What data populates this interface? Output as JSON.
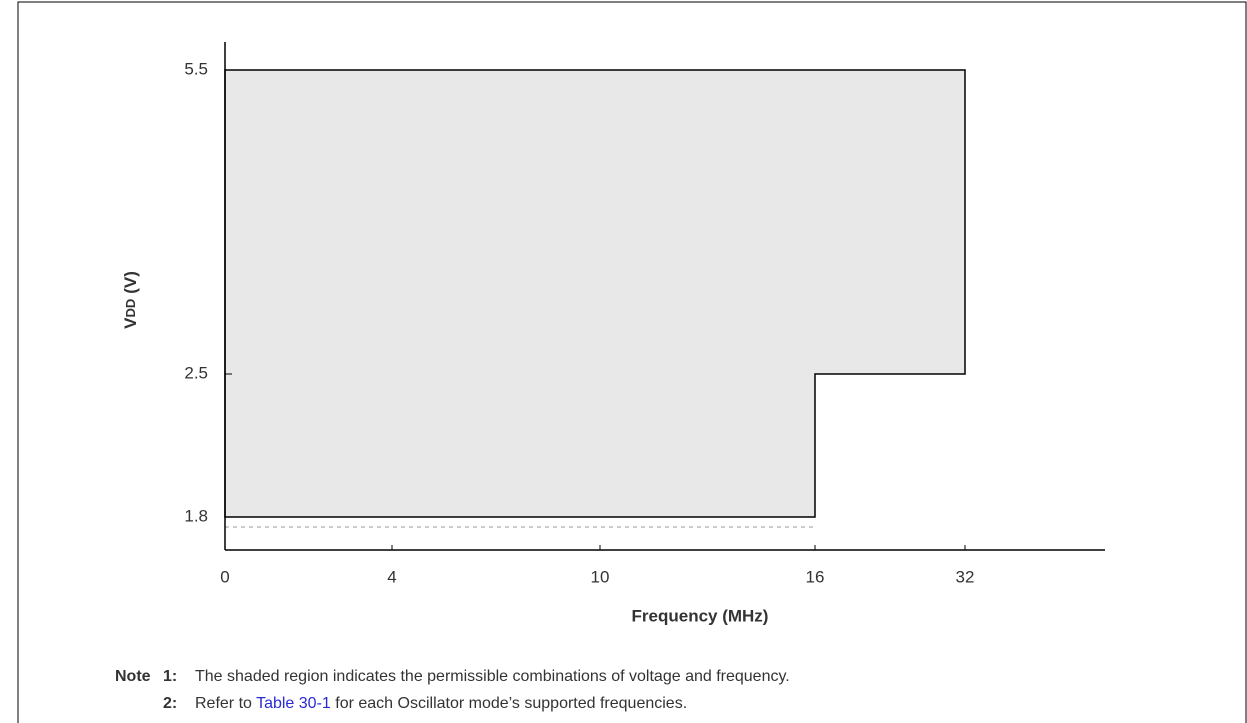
{
  "chart_data": {
    "type": "step-area",
    "y_label": {
      "main": "V",
      "sub": "DD",
      "unit": "(V)"
    },
    "x_label": "Frequency (MHz)",
    "xticks": [
      0,
      4,
      10,
      16,
      32
    ],
    "yticks": [
      1.8,
      2.5,
      5.5
    ],
    "region": {
      "x": [
        0,
        0,
        32,
        32,
        16,
        16
      ],
      "y": [
        1.8,
        5.5,
        5.5,
        2.5,
        2.5,
        1.8
      ],
      "color": "#e8e8e8"
    },
    "notes": {
      "heading": "Note",
      "items": [
        {
          "num": "1:",
          "text": "The shaded region indicates the permissible combinations of voltage and frequency."
        },
        {
          "num": "2:",
          "before": "Refer to",
          "link": "Table 30-1",
          "after": "for each Oscillator mode’s supported frequencies."
        }
      ]
    }
  }
}
